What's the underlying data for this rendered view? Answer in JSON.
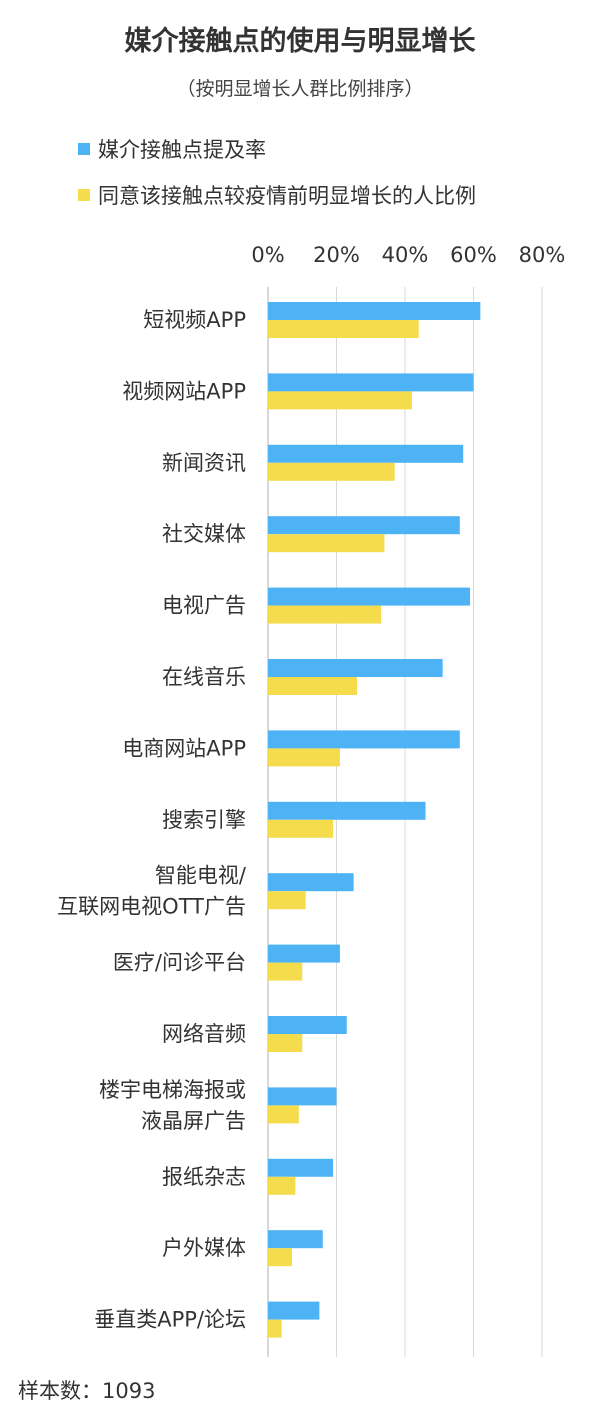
{
  "chart_data": {
    "type": "bar",
    "orientation": "horizontal",
    "title": "媒介接触点的使用与明显增长",
    "subtitle": "（按明显增长人群比例排序）",
    "footer": "样本数：1093",
    "xlim": [
      0,
      80
    ],
    "xticks": [
      "0%",
      "20%",
      "40%",
      "60%",
      "80%"
    ],
    "xtick_values": [
      0,
      20,
      40,
      60,
      80
    ],
    "grid": true,
    "legend_position": "top-left",
    "categories": [
      [
        "短视频APP"
      ],
      [
        "视频网站APP"
      ],
      [
        "新闻资讯"
      ],
      [
        "社交媒体"
      ],
      [
        "电视广告"
      ],
      [
        "在线音乐"
      ],
      [
        "电商网站APP"
      ],
      [
        "搜索引擎"
      ],
      [
        "智能电视/",
        "互联网电视OTT广告"
      ],
      [
        "医疗/问诊平台"
      ],
      [
        "网络音频"
      ],
      [
        "楼宇电梯海报或",
        "液晶屏广告"
      ],
      [
        "报纸杂志"
      ],
      [
        "户外媒体"
      ],
      [
        "垂直类APP/论坛"
      ]
    ],
    "series": [
      {
        "name": "媒介接触点提及率",
        "color": "#4db3f5",
        "values": [
          62,
          60,
          57,
          56,
          59,
          51,
          56,
          46,
          25,
          21,
          23,
          20,
          19,
          16,
          15
        ]
      },
      {
        "name": "同意该接触点较疫情前明显增长的人比例",
        "color": "#f5dc4d",
        "values": [
          44,
          42,
          37,
          34,
          33,
          26,
          21,
          19,
          11,
          10,
          10,
          9,
          8,
          7,
          4
        ]
      }
    ]
  }
}
